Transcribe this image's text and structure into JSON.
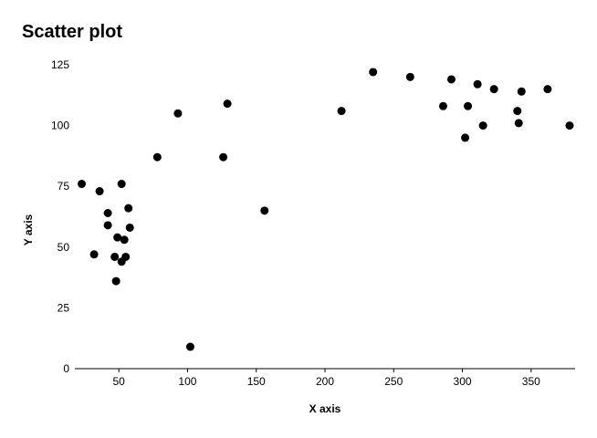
{
  "chart_data": {
    "type": "scatter",
    "title": "Scatter plot",
    "xlabel": "X axis",
    "ylabel": "Y axis",
    "xlim": [
      18,
      382
    ],
    "ylim": [
      0,
      125
    ],
    "x_ticks": [
      50,
      100,
      150,
      200,
      250,
      300,
      350
    ],
    "y_ticks": [
      0,
      25,
      50,
      75,
      100,
      125
    ],
    "grid": false,
    "legend": "none",
    "marker_color": "#000000",
    "points": [
      {
        "x": 23,
        "y": 76
      },
      {
        "x": 32,
        "y": 47
      },
      {
        "x": 36,
        "y": 73
      },
      {
        "x": 42,
        "y": 64
      },
      {
        "x": 42,
        "y": 59
      },
      {
        "x": 47,
        "y": 46
      },
      {
        "x": 48,
        "y": 36
      },
      {
        "x": 49,
        "y": 54
      },
      {
        "x": 52,
        "y": 44
      },
      {
        "x": 52,
        "y": 76
      },
      {
        "x": 54,
        "y": 53
      },
      {
        "x": 55,
        "y": 46
      },
      {
        "x": 57,
        "y": 66
      },
      {
        "x": 58,
        "y": 58
      },
      {
        "x": 78,
        "y": 87
      },
      {
        "x": 93,
        "y": 105
      },
      {
        "x": 102,
        "y": 9
      },
      {
        "x": 126,
        "y": 87
      },
      {
        "x": 129,
        "y": 109
      },
      {
        "x": 156,
        "y": 65
      },
      {
        "x": 212,
        "y": 106
      },
      {
        "x": 235,
        "y": 122
      },
      {
        "x": 262,
        "y": 120
      },
      {
        "x": 286,
        "y": 108
      },
      {
        "x": 292,
        "y": 119
      },
      {
        "x": 302,
        "y": 95
      },
      {
        "x": 304,
        "y": 108
      },
      {
        "x": 311,
        "y": 117
      },
      {
        "x": 315,
        "y": 100
      },
      {
        "x": 323,
        "y": 115
      },
      {
        "x": 340,
        "y": 106
      },
      {
        "x": 341,
        "y": 101
      },
      {
        "x": 343,
        "y": 114
      },
      {
        "x": 362,
        "y": 115
      },
      {
        "x": 378,
        "y": 100
      }
    ]
  }
}
